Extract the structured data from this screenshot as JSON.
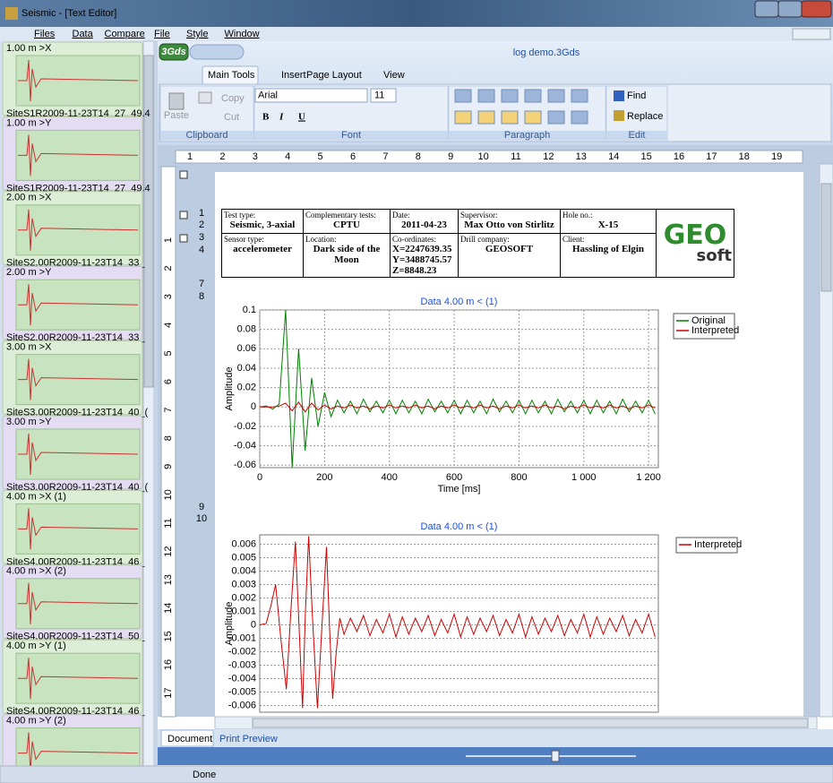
{
  "window": {
    "title": "Seismic - [Text Editor]"
  },
  "menu": [
    "Files",
    "Data",
    "Compare",
    "File",
    "Style",
    "Window"
  ],
  "sidebar": [
    {
      "label": "1.00 m >X",
      "caption": "SiteS1R2009-11-23T14_27_49.4"
    },
    {
      "label": "1.00 m >Y",
      "caption": "SiteS1R2009-11-23T14_27_49.4"
    },
    {
      "label": "2.00 m >X",
      "caption": "SiteS2.00R2009-11-23T14_33_"
    },
    {
      "label": "2.00 m >Y",
      "caption": "SiteS2.00R2009-11-23T14_33_"
    },
    {
      "label": "3.00 m >X",
      "caption": "SiteS3.00R2009-11-23T14_40_("
    },
    {
      "label": "3.00 m >Y",
      "caption": "SiteS3.00R2009-11-23T14_40_("
    },
    {
      "label": "4.00 m >X (1)",
      "caption": "SiteS4.00R2009-11-23T14_46_"
    },
    {
      "label": "4.00 m >X (2)",
      "caption": "SiteS4.00R2009-11-23T14_50_"
    },
    {
      "label": "4.00 m >Y (1)",
      "caption": "SiteS4.00R2009-11-23T14_46_"
    },
    {
      "label": "4.00 m >Y (2)"
    }
  ],
  "ribbon": {
    "app": "3Gds",
    "document": "log demo.3Gds",
    "tabs": [
      "Main Tools",
      "Insert",
      "Page Layout",
      "View"
    ],
    "clipboard": {
      "paste": "Paste",
      "copy": "Copy",
      "cut": "Cut",
      "label": "Clipboard"
    },
    "font": {
      "name": "Arial",
      "size": "11",
      "buttons": [
        "B",
        "I",
        "U"
      ],
      "label": "Font"
    },
    "paragraph": {
      "label": "Paragraph"
    },
    "edit": {
      "find": "Find",
      "replace": "Replace",
      "label": "Edit"
    }
  },
  "ruler": {
    "horizontal": [
      1,
      2,
      3,
      4,
      5,
      6,
      7,
      8,
      9,
      10,
      11,
      12,
      13,
      14,
      15,
      16,
      17,
      18,
      19
    ],
    "vertical": [
      1,
      2,
      3,
      4,
      5,
      6,
      7,
      8,
      9,
      10,
      11,
      12,
      13,
      14,
      15,
      16,
      17
    ]
  },
  "line_numbers": [
    "1",
    "2",
    "3",
    "4",
    "7",
    "8",
    "9",
    "10"
  ],
  "table": {
    "rows": [
      [
        {
          "label": "Test type:",
          "value": "Seismic, 3-axial"
        },
        {
          "label": "Complementary tests:",
          "value": "CPTU"
        },
        {
          "label": "Date:",
          "value": "2011-04-23"
        },
        {
          "label": "Supervisor:",
          "value": "Max Otto von Stirlitz"
        },
        {
          "label": "Hole no.:",
          "value": "X-15"
        }
      ],
      [
        {
          "label": "Sensor type:",
          "value": "accelerometer"
        },
        {
          "label": "Location:",
          "value": "Dark side of the Moon"
        },
        {
          "label": "Co-ordinates:",
          "value": [
            "X=2247639.35",
            "Y=3488745.57",
            "Z=8848.23"
          ]
        },
        {
          "label": "Drill company:",
          "value": "GEOSOFT"
        },
        {
          "label": "Client:",
          "value": "Hassling of Elgin"
        }
      ]
    ],
    "logo": {
      "top": "GEO",
      "bottom": "soft"
    }
  },
  "chart_data": [
    {
      "type": "line",
      "title": "Data 4.00 m < (1)",
      "ylabel": "Amplitude",
      "xlabel": "Time [ms]",
      "x": [
        0,
        20,
        40,
        60,
        80,
        100,
        120,
        140,
        160,
        180,
        200,
        220,
        240,
        260,
        280,
        300,
        320,
        340,
        360,
        380,
        400,
        420,
        440,
        460,
        480,
        500,
        520,
        540,
        560,
        580,
        600,
        620,
        640,
        660,
        680,
        700,
        720,
        740,
        760,
        780,
        800,
        820,
        840,
        860,
        880,
        900,
        920,
        940,
        960,
        980,
        1000,
        1020,
        1040,
        1060,
        1080,
        1100,
        1120,
        1140,
        1160,
        1180,
        1200,
        1220
      ],
      "series": [
        {
          "name": "Original",
          "color": "#008000",
          "values": [
            0,
            0.001,
            -0.002,
            0.003,
            0.1,
            -0.062,
            0.06,
            -0.045,
            0.03,
            -0.02,
            0.015,
            -0.01,
            0.007,
            -0.006,
            0.006,
            -0.007,
            0.008,
            -0.005,
            0.006,
            -0.006,
            0.007,
            -0.007,
            0.007,
            -0.006,
            0.006,
            -0.007,
            0.008,
            -0.005,
            0.006,
            -0.006,
            0.007,
            -0.007,
            0.007,
            -0.006,
            0.006,
            -0.007,
            0.008,
            -0.005,
            0.006,
            -0.006,
            0.007,
            -0.007,
            0.007,
            -0.006,
            0.006,
            -0.007,
            0.008,
            -0.005,
            0.006,
            -0.006,
            0.007,
            -0.007,
            0.007,
            -0.006,
            0.006,
            -0.007,
            0.008,
            -0.005,
            0.006,
            -0.006,
            0.007,
            -0.007
          ]
        },
        {
          "name": "Interpreted",
          "color": "#cc0000",
          "values": [
            0,
            0,
            0,
            0.001,
            0.004,
            -0.004,
            0.005,
            -0.005,
            0.004,
            -0.003,
            0.002,
            -0.002,
            0.001,
            -0.001,
            0.002,
            -0.001,
            0.001,
            -0.002,
            0.001,
            -0.001,
            0.002,
            -0.001,
            0.001,
            -0.001,
            0.002,
            -0.001,
            0.001,
            -0.002,
            0.001,
            -0.001,
            0.002,
            -0.001,
            0.001,
            -0.001,
            0.002,
            -0.001,
            0.001,
            -0.002,
            0.001,
            -0.001,
            0.002,
            -0.001,
            0.001,
            -0.001,
            0.002,
            -0.001,
            0.001,
            -0.002,
            0.001,
            -0.001,
            0.002,
            -0.001,
            0.001,
            -0.001,
            0.002,
            -0.001,
            0.001,
            -0.002,
            0.001,
            -0.001,
            0.002,
            -0.001
          ]
        }
      ],
      "xlim": [
        0,
        1230
      ],
      "xticks": [
        0,
        200,
        400,
        600,
        800,
        {
          "value": 1000,
          "label": "1 000"
        },
        {
          "value": 1200,
          "label": "1 200"
        }
      ],
      "ylim": [
        -0.0625,
        0.1
      ],
      "yticks": [
        -0.06,
        -0.04,
        -0.02,
        0,
        0.02,
        0.04,
        0.06,
        0.08,
        0.1
      ],
      "grid": true,
      "legend": "right"
    },
    {
      "type": "line",
      "title": "Data 4.00 m < (1)",
      "ylabel": "Amplitude",
      "x": [
        0,
        20,
        35,
        49,
        65,
        82,
        96,
        110,
        121,
        132,
        141,
        151,
        164,
        178,
        192,
        206,
        215,
        225,
        236,
        247,
        260,
        280,
        300,
        320,
        340,
        360,
        380,
        400,
        420,
        440,
        460,
        480,
        500,
        520,
        540,
        560,
        580,
        600,
        620,
        640,
        660,
        680,
        700,
        720,
        740,
        760,
        780,
        800,
        820,
        840,
        860,
        880,
        900,
        920,
        940,
        960,
        980,
        1000,
        1020,
        1040,
        1060,
        1080,
        1100,
        1120,
        1140,
        1160,
        1180,
        1200,
        1220
      ],
      "series": [
        {
          "name": "Interpreted",
          "color": "#cc0000",
          "values": [
            0,
            0.0001,
            0.0015,
            0.003,
            -0.001,
            -0.0048,
            0.001,
            0.0062,
            0,
            -0.0062,
            0.001,
            0.0066,
            0,
            -0.0062,
            0,
            0.0058,
            0,
            -0.0055,
            -0.002,
            0.0005,
            -0.0007,
            0.0005,
            -0.0005,
            0.0007,
            -0.0008,
            0.0004,
            -0.0006,
            0.0008,
            -0.0009,
            0.0006,
            -0.0007,
            0.0005,
            -0.0005,
            0.0007,
            -0.0008,
            0.0004,
            -0.0006,
            0.0008,
            -0.0009,
            0.0006,
            -0.0007,
            0.0005,
            -0.0005,
            0.0007,
            -0.0008,
            0.0004,
            -0.0006,
            0.0008,
            -0.0009,
            0.0006,
            -0.0007,
            0.0005,
            -0.0005,
            0.0007,
            -0.0008,
            0.0004,
            -0.0006,
            0.0008,
            -0.0009,
            0.0006,
            -0.0007,
            0.0005,
            -0.0005,
            0.0007,
            -0.0008,
            0.0004,
            -0.0006,
            0.0008,
            -0.0009
          ]
        }
      ],
      "xlim": [
        0,
        1230
      ],
      "ylim": [
        -0.0065,
        0.0067
      ],
      "yticks": [
        -0.006,
        -0.005,
        -0.004,
        -0.003,
        -0.002,
        -0.001,
        0,
        0.001,
        0.002,
        0.003,
        0.004,
        0.005,
        0.006
      ],
      "grid": true,
      "legend": "right"
    }
  ],
  "tabs": [
    "Document",
    "Print Preview"
  ],
  "status": "Done"
}
